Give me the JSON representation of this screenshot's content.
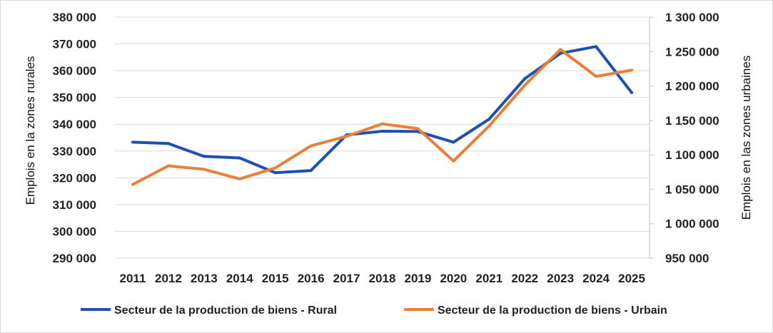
{
  "chart_data": {
    "type": "line",
    "title": "",
    "categories": [
      "2011",
      "2012",
      "2013",
      "2014",
      "2015",
      "2016",
      "2017",
      "2018",
      "2019",
      "2020",
      "2021",
      "2022",
      "2023",
      "2024",
      "2025"
    ],
    "y_left": {
      "label": "Emplois en la zones rurales",
      "range": [
        290000,
        380000
      ],
      "ticks": [
        "290 000",
        "300 000",
        "310 000",
        "320 000",
        "330 000",
        "340 000",
        "350 000",
        "360 000",
        "370 000",
        "380 000"
      ]
    },
    "y_right": {
      "label": "Emplois en las zones urbaines",
      "range": [
        950000,
        1300000
      ],
      "ticks": [
        "950 000",
        "1 000 000",
        "1 050 000",
        "1 100 000",
        "1 150 000",
        "1 200 000",
        "1 250 000",
        "1 300 000"
      ]
    },
    "grid": true,
    "legend_position": "bottom",
    "series": [
      {
        "name": "Secteur de la production de biens - Rural",
        "axis": "left",
        "color": "#1f4fb0",
        "values": [
          333300,
          332800,
          328000,
          327400,
          321900,
          322700,
          336000,
          337400,
          337300,
          333300,
          341900,
          357000,
          366500,
          369000,
          351800
        ]
      },
      {
        "name": "Secteur de la production de biens - Urbain",
        "axis": "right",
        "color": "#e8803a",
        "values": [
          1057000,
          1084000,
          1079000,
          1065000,
          1081000,
          1113000,
          1127000,
          1145000,
          1138000,
          1091000,
          1142000,
          1201000,
          1253000,
          1214000,
          1223000
        ]
      }
    ]
  }
}
